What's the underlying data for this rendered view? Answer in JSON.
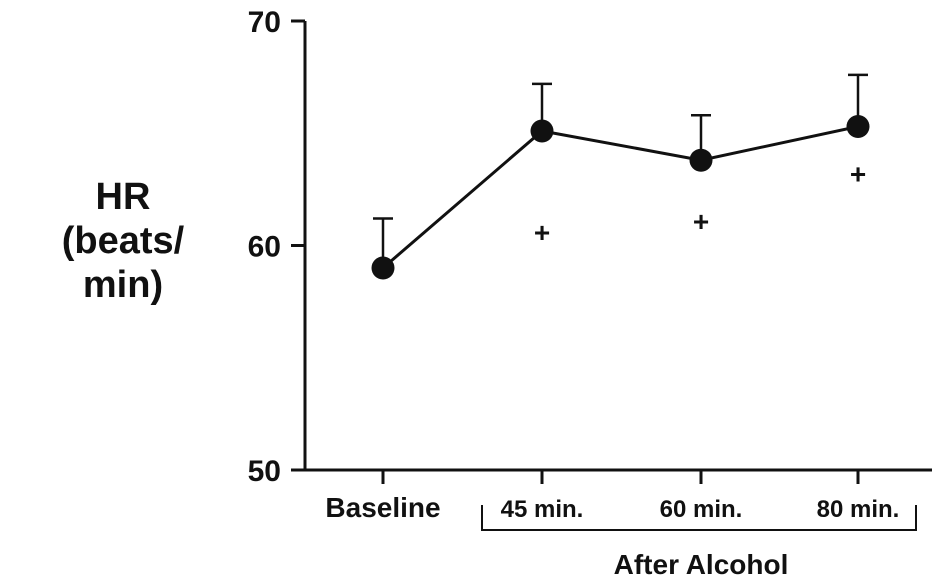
{
  "chart_data": {
    "type": "line",
    "title": "",
    "ylabel_lines": [
      "HR",
      "(beats/",
      "min)"
    ],
    "xlabel": "",
    "categories": [
      "Baseline",
      "45 min.",
      "60 min.",
      "80 min."
    ],
    "values": [
      59.0,
      65.1,
      63.8,
      65.3
    ],
    "error_upper": [
      61.2,
      67.2,
      65.8,
      67.6
    ],
    "significance_marker": "+",
    "significant": [
      false,
      true,
      true,
      true
    ],
    "significance_marker_y": [
      null,
      60.6,
      61.1,
      63.2
    ],
    "ylim": [
      50,
      70
    ],
    "yticks": [
      50,
      60,
      70
    ],
    "group_label": "After Alcohol",
    "group_categories": [
      "45 min.",
      "60 min.",
      "80 min."
    ],
    "grid": false,
    "legend": "none"
  }
}
